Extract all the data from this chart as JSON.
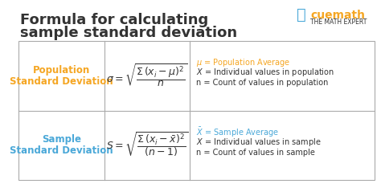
{
  "title_line1": "Formula for calculating",
  "title_line2": "sample standard deviation",
  "title_color": "#333333",
  "title_fontsize": 13,
  "bg_color": "#ffffff",
  "table_border_color": "#aaaaaa",
  "orange_color": "#f5a623",
  "blue_color": "#4aa8d8",
  "dark_color": "#333333",
  "row1_label1": "Population\nStandard Deviation",
  "row1_formula": "$\\sigma = \\sqrt{\\dfrac{\\Sigma\\,(x_i - \\mu)^2}{n}}$",
  "row1_desc1": "$\\mu$ = Population Average",
  "row1_desc2": "$X$ = Individual values in population",
  "row1_desc3": "n = Count of values in population",
  "row2_label1": "Sample\nStandard Deviation",
  "row2_formula": "$S = \\sqrt{\\dfrac{\\Sigma\\,(x_i - \\bar{x})^2}{(n - 1)}}$",
  "row2_desc1": "$\\bar{X}$ = Sample Average",
  "row2_desc2": "$X$ = Individual values in sample",
  "row2_desc3": "n = Count of values in sample",
  "cuemath_color": "#f5a623",
  "cuemath_text": "cuemath",
  "cuemath_sub": "THE MATH EXPERT"
}
